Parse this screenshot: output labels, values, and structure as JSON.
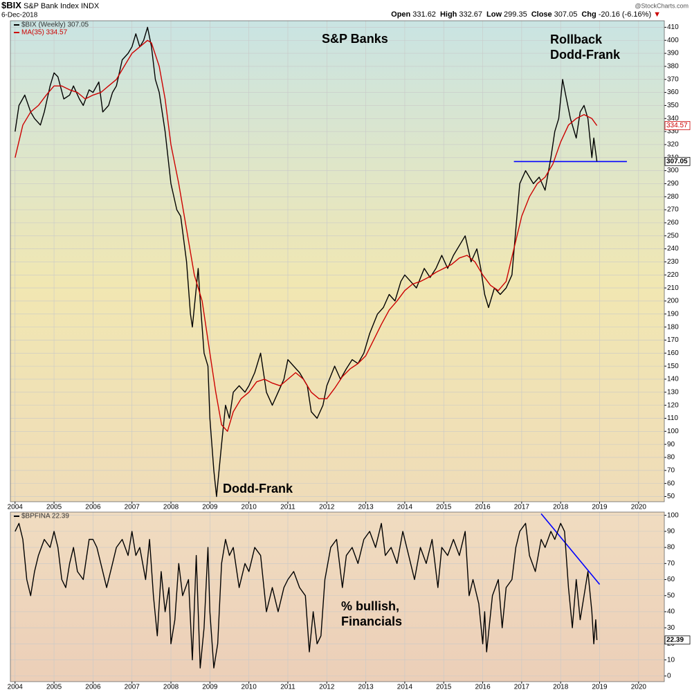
{
  "header": {
    "symbol": "$BIX",
    "name": "S&P Bank Index",
    "exchange": "INDX",
    "date": "6-Dec-2018",
    "quote": [
      {
        "label": "Open",
        "value": 331.62
      },
      {
        "label": "High",
        "value": 332.67
      },
      {
        "label": "Low",
        "value": 299.35
      },
      {
        "label": "Close",
        "value": 307.05
      },
      {
        "label": "Chg",
        "value": -20.16
      }
    ],
    "change_pct": "(-6.16%)",
    "source": "@StockCharts.com"
  },
  "chart_data": [
    {
      "type": "line",
      "xlim": [
        2003.88,
        2020.66
      ],
      "xticks": [
        2004,
        2005,
        2006,
        2007,
        2008,
        2009,
        2010,
        2011,
        2012,
        2013,
        2014,
        2015,
        2016,
        2017,
        2018,
        2019,
        2020
      ],
      "ylim": [
        46,
        415
      ],
      "yticks": [
        50,
        60,
        70,
        80,
        90,
        100,
        110,
        120,
        130,
        140,
        150,
        160,
        170,
        180,
        190,
        200,
        210,
        220,
        230,
        240,
        250,
        260,
        270,
        280,
        290,
        300,
        310,
        320,
        330,
        340,
        350,
        360,
        370,
        380,
        390,
        400,
        410
      ],
      "grid": true,
      "series": [
        {
          "name": "$BIX (Weekly) 307.05",
          "color": "#000000",
          "x": [
            2004.0,
            2004.1,
            2004.25,
            2004.4,
            2004.5,
            2004.65,
            2004.75,
            2004.9,
            2005.0,
            2005.1,
            2005.25,
            2005.4,
            2005.5,
            2005.65,
            2005.75,
            2005.9,
            2006.0,
            2006.15,
            2006.25,
            2006.4,
            2006.5,
            2006.6,
            2006.75,
            2006.9,
            2007.0,
            2007.1,
            2007.2,
            2007.3,
            2007.4,
            2007.5,
            2007.6,
            2007.7,
            2007.85,
            2008.0,
            2008.15,
            2008.25,
            2008.4,
            2008.5,
            2008.55,
            2008.7,
            2008.75,
            2008.85,
            2008.95,
            2009.0,
            2009.1,
            2009.17,
            2009.3,
            2009.4,
            2009.5,
            2009.6,
            2009.75,
            2009.9,
            2010.0,
            2010.15,
            2010.3,
            2010.45,
            2010.6,
            2010.75,
            2010.9,
            2011.0,
            2011.15,
            2011.3,
            2011.5,
            2011.6,
            2011.75,
            2011.9,
            2012.0,
            2012.2,
            2012.35,
            2012.5,
            2012.65,
            2012.8,
            2012.95,
            2013.1,
            2013.3,
            2013.45,
            2013.6,
            2013.75,
            2013.9,
            2014.0,
            2014.15,
            2014.3,
            2014.5,
            2014.65,
            2014.8,
            2014.95,
            2015.1,
            2015.25,
            2015.45,
            2015.55,
            2015.7,
            2015.85,
            2015.95,
            2016.05,
            2016.15,
            2016.3,
            2016.45,
            2016.6,
            2016.75,
            2016.85,
            2016.95,
            2017.1,
            2017.2,
            2017.3,
            2017.45,
            2017.6,
            2017.75,
            2017.85,
            2017.95,
            2018.05,
            2018.15,
            2018.25,
            2018.4,
            2018.5,
            2018.6,
            2018.7,
            2018.8,
            2018.85,
            2018.93
          ],
          "values": [
            330,
            350,
            358,
            345,
            340,
            335,
            345,
            365,
            375,
            372,
            355,
            358,
            365,
            355,
            350,
            362,
            360,
            368,
            345,
            350,
            360,
            365,
            385,
            390,
            395,
            405,
            395,
            400,
            410,
            395,
            370,
            360,
            330,
            290,
            270,
            265,
            230,
            190,
            180,
            225,
            200,
            160,
            150,
            110,
            70,
            50,
            90,
            120,
            110,
            130,
            135,
            130,
            135,
            145,
            160,
            130,
            120,
            130,
            140,
            155,
            150,
            145,
            135,
            115,
            110,
            120,
            135,
            150,
            140,
            148,
            155,
            152,
            160,
            175,
            190,
            195,
            205,
            200,
            215,
            220,
            215,
            210,
            225,
            218,
            225,
            235,
            225,
            235,
            245,
            250,
            230,
            240,
            225,
            205,
            195,
            210,
            205,
            210,
            220,
            255,
            290,
            300,
            295,
            290,
            295,
            285,
            310,
            330,
            340,
            370,
            355,
            340,
            325,
            345,
            350,
            340,
            310,
            325,
            307.05
          ]
        },
        {
          "name": "MA(35) 334.57",
          "color": "#cc0000",
          "x": [
            2004.0,
            2004.2,
            2004.4,
            2004.6,
            2004.8,
            2005.0,
            2005.2,
            2005.4,
            2005.6,
            2005.8,
            2006.0,
            2006.2,
            2006.4,
            2006.6,
            2006.8,
            2007.0,
            2007.2,
            2007.4,
            2007.5,
            2007.7,
            2007.85,
            2008.0,
            2008.2,
            2008.4,
            2008.6,
            2008.8,
            2009.0,
            2009.15,
            2009.3,
            2009.45,
            2009.6,
            2009.8,
            2010.0,
            2010.2,
            2010.4,
            2010.6,
            2010.8,
            2011.0,
            2011.2,
            2011.4,
            2011.6,
            2011.8,
            2012.0,
            2012.2,
            2012.4,
            2012.6,
            2012.8,
            2013.0,
            2013.2,
            2013.4,
            2013.6,
            2013.8,
            2014.0,
            2014.2,
            2014.4,
            2014.6,
            2014.8,
            2015.0,
            2015.2,
            2015.4,
            2015.6,
            2015.8,
            2016.0,
            2016.2,
            2016.4,
            2016.6,
            2016.8,
            2017.0,
            2017.2,
            2017.4,
            2017.6,
            2017.8,
            2018.0,
            2018.2,
            2018.4,
            2018.6,
            2018.8,
            2018.93
          ],
          "values": [
            310,
            335,
            345,
            350,
            358,
            365,
            365,
            362,
            360,
            355,
            358,
            360,
            365,
            370,
            380,
            390,
            395,
            400,
            398,
            380,
            355,
            320,
            290,
            255,
            220,
            200,
            160,
            130,
            105,
            100,
            115,
            125,
            130,
            138,
            140,
            137,
            135,
            140,
            145,
            140,
            130,
            125,
            125,
            133,
            142,
            148,
            152,
            158,
            170,
            182,
            193,
            200,
            208,
            213,
            215,
            218,
            222,
            225,
            228,
            233,
            235,
            230,
            220,
            212,
            208,
            215,
            240,
            265,
            280,
            290,
            295,
            305,
            322,
            335,
            340,
            343,
            340,
            334.57
          ]
        }
      ],
      "annotations": [
        {
          "lines": [
            "S&P Banks"
          ],
          "color": "#000000"
        },
        {
          "lines": [
            "Rollback",
            "Dodd-Frank"
          ],
          "color": "#0000ff"
        },
        {
          "lines": [
            "Dodd-Frank"
          ],
          "color": "#0000ff"
        }
      ],
      "reference_lines": [
        {
          "x": [
            2016.8,
            2019.7
          ],
          "y": [
            307,
            307
          ],
          "color": "#0000ff"
        }
      ]
    },
    {
      "type": "line",
      "xlim": [
        2003.88,
        2020.66
      ],
      "xticks": [
        2004,
        2005,
        2006,
        2007,
        2008,
        2009,
        2010,
        2011,
        2012,
        2013,
        2014,
        2015,
        2016,
        2017,
        2018,
        2019,
        2020
      ],
      "ylim": [
        -3.5,
        102
      ],
      "yticks": [
        0,
        10,
        20,
        30,
        40,
        50,
        60,
        70,
        80,
        90,
        100
      ],
      "grid": true,
      "series": [
        {
          "name": "$BPFINA 22.39",
          "color": "#000000",
          "x": [
            2004.0,
            2004.1,
            2004.2,
            2004.3,
            2004.4,
            2004.5,
            2004.6,
            2004.75,
            2004.9,
            2005.0,
            2005.1,
            2005.2,
            2005.3,
            2005.4,
            2005.5,
            2005.6,
            2005.75,
            2005.9,
            2006.0,
            2006.1,
            2006.25,
            2006.35,
            2006.5,
            2006.6,
            2006.75,
            2006.9,
            2007.0,
            2007.1,
            2007.2,
            2007.35,
            2007.45,
            2007.55,
            2007.65,
            2007.75,
            2007.85,
            2007.95,
            2008.0,
            2008.1,
            2008.2,
            2008.3,
            2008.45,
            2008.55,
            2008.65,
            2008.75,
            2008.85,
            2008.95,
            2009.0,
            2009.1,
            2009.2,
            2009.3,
            2009.4,
            2009.5,
            2009.6,
            2009.75,
            2009.9,
            2010.0,
            2010.15,
            2010.3,
            2010.45,
            2010.6,
            2010.75,
            2010.9,
            2011.0,
            2011.15,
            2011.3,
            2011.45,
            2011.55,
            2011.65,
            2011.75,
            2011.85,
            2011.95,
            2012.1,
            2012.25,
            2012.4,
            2012.5,
            2012.65,
            2012.8,
            2012.95,
            2013.1,
            2013.25,
            2013.4,
            2013.5,
            2013.65,
            2013.8,
            2013.95,
            2014.1,
            2014.25,
            2014.4,
            2014.55,
            2014.7,
            2014.85,
            2014.95,
            2015.1,
            2015.25,
            2015.4,
            2015.55,
            2015.65,
            2015.75,
            2015.9,
            2016.0,
            2016.05,
            2016.1,
            2016.25,
            2016.4,
            2016.5,
            2016.6,
            2016.75,
            2016.85,
            2016.95,
            2017.1,
            2017.2,
            2017.35,
            2017.5,
            2017.6,
            2017.75,
            2017.85,
            2018.0,
            2018.1,
            2018.2,
            2018.3,
            2018.4,
            2018.5,
            2018.6,
            2018.7,
            2018.8,
            2018.85,
            2018.9,
            2018.93
          ],
          "values": [
            90,
            95,
            85,
            60,
            50,
            65,
            75,
            85,
            80,
            90,
            80,
            60,
            55,
            70,
            80,
            65,
            60,
            85,
            85,
            80,
            65,
            55,
            70,
            80,
            85,
            75,
            90,
            75,
            80,
            60,
            85,
            50,
            25,
            65,
            40,
            55,
            20,
            35,
            70,
            50,
            60,
            10,
            75,
            5,
            30,
            80,
            40,
            5,
            20,
            70,
            85,
            75,
            80,
            55,
            70,
            65,
            80,
            75,
            40,
            55,
            40,
            55,
            60,
            65,
            55,
            50,
            15,
            40,
            20,
            25,
            60,
            80,
            85,
            55,
            75,
            80,
            70,
            85,
            90,
            80,
            95,
            75,
            80,
            70,
            90,
            75,
            60,
            80,
            70,
            85,
            55,
            80,
            75,
            85,
            75,
            90,
            50,
            60,
            45,
            20,
            40,
            15,
            50,
            60,
            30,
            55,
            60,
            80,
            90,
            95,
            75,
            65,
            85,
            80,
            90,
            85,
            95,
            90,
            55,
            30,
            60,
            35,
            50,
            65,
            40,
            20,
            35,
            22.39
          ]
        }
      ],
      "annotations": [
        {
          "lines": [
            "% bullish,",
            "Financials"
          ],
          "color": "#000000"
        }
      ],
      "reference_lines": [
        {
          "x": [
            2017.5,
            2019.0
          ],
          "y": [
            101,
            57
          ],
          "color": "#0000ff"
        }
      ]
    }
  ]
}
